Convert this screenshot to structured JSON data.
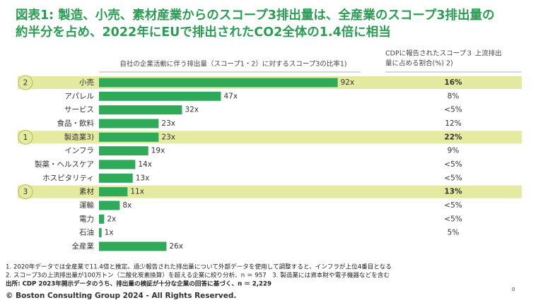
{
  "chart_data": {
    "type": "bar",
    "orientation": "horizontal",
    "title": [
      "図表1: 製造、小売、素材産業からのスコープ3排出量は、全産業のスコープ3排出量の",
      "約半分を占め、2022年にEUで排出されたCO2全体の1.4倍に相当"
    ],
    "column_headers": [
      "自社の企業活動に伴う排出量（スコープ1・2）に対するスコープ3の比率1)",
      [
        "CDPに報告されたスコープ３ 上流排出",
        "量に占める割合(%) 2)"
      ]
    ],
    "categories": [
      "小売",
      "アパレル",
      "サービス",
      "食品・飲料",
      "製造業3)",
      "インフラ",
      "製薬・ヘルスケア",
      "ホスピタリティ",
      "素材",
      "運輸",
      "電力",
      "石油",
      "全産業"
    ],
    "values": [
      92,
      47,
      32,
      23,
      23,
      19,
      14,
      13,
      11,
      8,
      2,
      1,
      26
    ],
    "value_labels": [
      "92x",
      "47x",
      "32x",
      "23x",
      "23x",
      "19x",
      "14x",
      "13x",
      "11x",
      "8x",
      "2x",
      "1x",
      "26x"
    ],
    "share_labels": [
      "16%",
      "8%",
      "<5%",
      "12%",
      "22%",
      "9%",
      "<5%",
      "<5%",
      "13%",
      "<5%",
      "<5%",
      "5%",
      null
    ],
    "highlights": [
      {
        "index": 0,
        "badge": "2"
      },
      {
        "index": 4,
        "badge": "1"
      },
      {
        "index": 8,
        "badge": "3"
      }
    ],
    "color": "#2eaa58",
    "highlight_color": "#e4ea9f",
    "xlim": [
      0,
      100
    ],
    "footnotes": [
      "1. 2020年データでは全産業で11.4倍と推定。過少報告された排出量について外部データを使用して調整すると、インフラが上位4番目となる",
      "2. スコープ3の上流排出量が100万トン（二酸化炭素換算）を超える企業に絞り分析、n ＝ 957　3. 製造業には資本財や電子機器などを含む",
      "出所: CDP 2023年開示データのうち、排出量の検証が十分な企業の回答に基づく、n ＝ 2,229"
    ],
    "copyright": "© Boston Consulting Group 2024 - All Rights Reserved.",
    "page_number": "0"
  }
}
